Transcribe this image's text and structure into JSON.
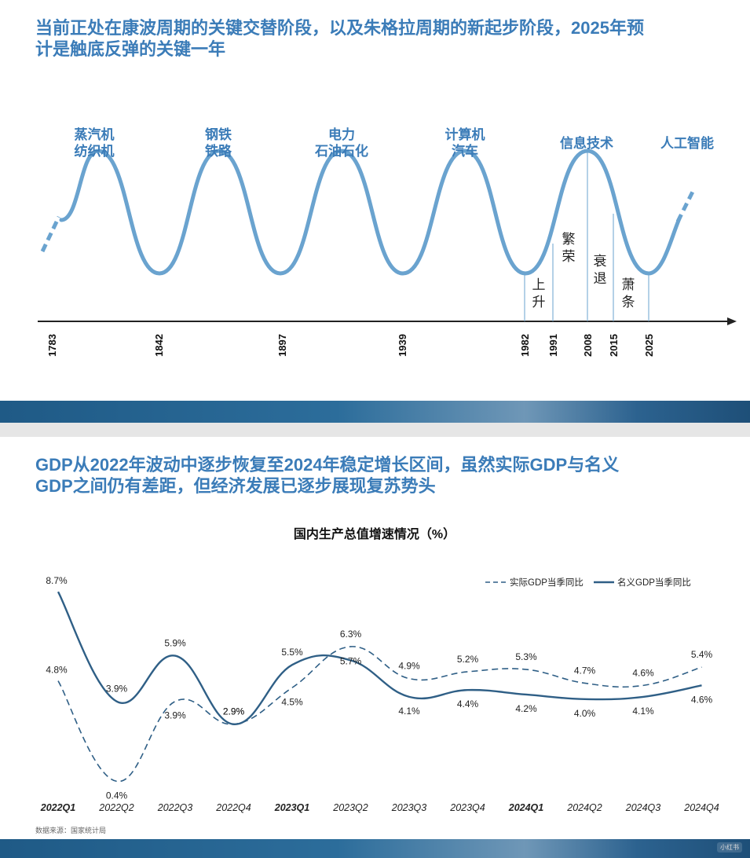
{
  "slide1": {
    "title_line1": "当前正处在康波周期的关键交替阶段，以及朱格拉周期的新起步阶段，2025年预",
    "title_line2": "计是触底反弹的关键一年",
    "wave_labels": [
      {
        "line1": "蒸汽机",
        "line2": "纺织机"
      },
      {
        "line1": "钢铁",
        "line2": "铁路"
      },
      {
        "line1": "电力",
        "line2": "石油石化"
      },
      {
        "line1": "计算机",
        "line2": "汽车"
      },
      {
        "line1": "信息技术",
        "line2": ""
      },
      {
        "line1": "人工智能",
        "line2": ""
      }
    ],
    "years": [
      "1783",
      "1842",
      "1897",
      "1939",
      "1982",
      "1991",
      "2008",
      "2015",
      "2025"
    ],
    "phases": [
      "上升",
      "繁荣",
      "衰退",
      "萧条"
    ],
    "colors": {
      "wave": "#6aa3cf",
      "axis": "#222222",
      "text": "#3b7cb8"
    }
  },
  "slide2": {
    "title_line1": "GDP从2022年波动中逐步恢复至2024年稳定增长区间，虽然实际GDP与名义",
    "title_line2": "GDP之间仍有差距，但经济发展已逐步展现复苏势头",
    "source": "数据来源：国家统计局",
    "watermark": "小红书"
  },
  "chart_data": {
    "type": "line",
    "title": "国内生产总值增速情况（%）",
    "categories": [
      "2022Q1",
      "2022Q2",
      "2022Q3",
      "2022Q4",
      "2023Q1",
      "2023Q2",
      "2023Q3",
      "2023Q4",
      "2024Q1",
      "2024Q2",
      "2024Q3",
      "2024Q4"
    ],
    "bold_categories": [
      "2022Q1",
      "2023Q1",
      "2024Q1"
    ],
    "series": [
      {
        "name": "实际GDP当季同比",
        "style": "dashed",
        "color": "#2f5f86",
        "values": [
          4.8,
          0.4,
          3.9,
          2.9,
          4.5,
          6.3,
          4.9,
          5.2,
          5.3,
          4.7,
          4.6,
          5.4
        ],
        "labels": [
          "4.8%",
          "0.4%",
          "3.9%",
          "2.9%",
          "4.5%",
          "6.3%",
          "4.9%",
          "5.2%",
          "5.3%",
          "4.7%",
          "4.6%",
          "5.4%"
        ]
      },
      {
        "name": "名义GDP当季同比",
        "style": "solid",
        "color": "#2f5f86",
        "values": [
          8.7,
          3.9,
          5.9,
          2.9,
          5.5,
          5.7,
          4.1,
          4.4,
          4.2,
          4.0,
          4.1,
          4.6
        ],
        "labels": [
          "8.7%",
          "3.9%",
          "5.9%",
          "2.9%",
          "5.5%",
          "5.7%",
          "4.1%",
          "4.4%",
          "4.2%",
          "4.0%",
          "4.1%",
          "4.6%"
        ]
      }
    ],
    "ylim": [
      0,
      9.5
    ],
    "legend": "top-right",
    "grid": false
  }
}
